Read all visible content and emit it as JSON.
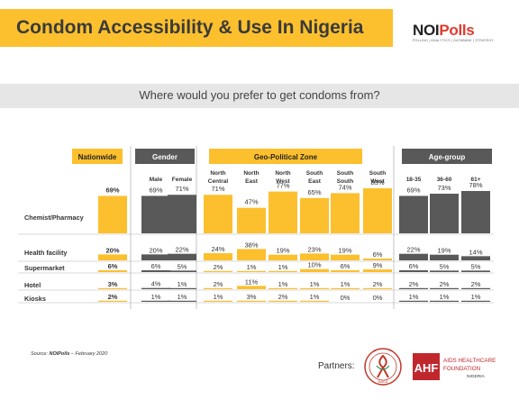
{
  "header": {
    "title": "Condom Accessibility & Use In Nigeria",
    "logo_noi": "NOI",
    "logo_polls": "Polls",
    "logo_tagline": "POLLING | ANALYTICS | DATABANK | STRATEGY"
  },
  "question": "Where would you prefer to get condoms from?",
  "footer": {
    "source_prefix": "Source: ",
    "source_brand": "NOIPolls",
    "source_suffix": " – February 2020",
    "partners_label": "Partners:",
    "ahf_logo": "AHF",
    "ahf_name_line1": "AIDS HEALTHCARE",
    "ahf_name_line2": "FOUNDATION",
    "ahf_name_line3": "NIGERIA",
    "seal_text": "NACA"
  },
  "colors": {
    "yellow": "#fcc02e",
    "dark_bar": "#595959",
    "line": "#b5b5b5"
  },
  "chart_data": {
    "type": "table",
    "groups": [
      {
        "label": "Nationwide",
        "columns": [
          "Nationwide"
        ]
      },
      {
        "label": "Gender",
        "columns": [
          "Male",
          "Female"
        ]
      },
      {
        "label": "Geo-Political Zone",
        "columns": [
          "North Central",
          "North East",
          "North West",
          "South East",
          "South South",
          "South West"
        ]
      },
      {
        "label": "Age-group",
        "columns": [
          "18-35",
          "36-60",
          "61+"
        ]
      }
    ],
    "column_headers": [
      [
        ""
      ],
      [
        "Male"
      ],
      [
        "Female"
      ],
      [
        "North",
        "Central"
      ],
      [
        "North",
        "East"
      ],
      [
        "North",
        "West"
      ],
      [
        "South",
        "East"
      ],
      [
        "South",
        "South"
      ],
      [
        "South",
        "West"
      ],
      [
        "18-35"
      ],
      [
        "36-60"
      ],
      [
        "61+"
      ]
    ],
    "rows": [
      {
        "label": "Chemist/Pharmacy",
        "values": [
          69,
          69,
          71,
          71,
          47,
          77,
          65,
          74,
          83,
          69,
          73,
          78
        ]
      },
      {
        "label": "Health facility",
        "values": [
          20,
          20,
          22,
          24,
          38,
          19,
          23,
          19,
          6,
          22,
          19,
          14
        ]
      },
      {
        "label": "Supermarket",
        "values": [
          6,
          6,
          5,
          2,
          1,
          1,
          10,
          6,
          9,
          6,
          5,
          5
        ]
      },
      {
        "label": "Hotel",
        "values": [
          3,
          4,
          1,
          2,
          11,
          1,
          1,
          1,
          2,
          2,
          2,
          2
        ]
      },
      {
        "label": "Kiosks",
        "values": [
          2,
          1,
          1,
          1,
          3,
          2,
          1,
          0,
          0,
          1,
          1,
          1
        ]
      }
    ],
    "unit": "%"
  }
}
